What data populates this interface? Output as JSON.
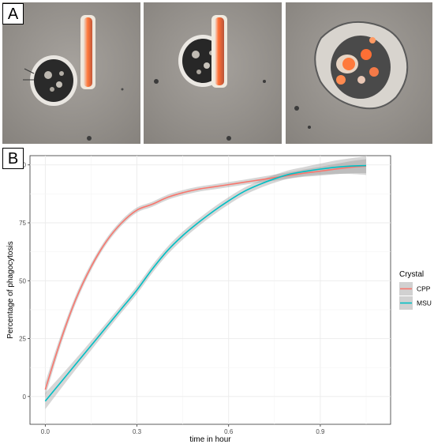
{
  "panel_a": {
    "label": "A",
    "images": [
      {
        "stage": "crystal-adjacent-to-cell"
      },
      {
        "stage": "cell-engulfing-crystal"
      },
      {
        "stage": "crystal-fully-phagocytosed"
      }
    ]
  },
  "panel_b": {
    "label": "B"
  },
  "chart_data": {
    "type": "line",
    "title": "",
    "xlabel": "time in hour",
    "ylabel": "Percentage of phagocytosis",
    "xlim": [
      -0.05,
      1.13
    ],
    "ylim": [
      -12,
      104
    ],
    "x_ticks": [
      0.0,
      0.3,
      0.6,
      0.9
    ],
    "x_tick_labels": [
      "0.0",
      "0.3",
      "0.6",
      "0.9"
    ],
    "y_ticks": [
      0,
      25,
      50,
      75,
      100
    ],
    "y_tick_labels": [
      "0",
      "25",
      "50",
      "75",
      "100"
    ],
    "grid": true,
    "legend": {
      "title": "Crystal",
      "position": "right"
    },
    "series": [
      {
        "name": "CPP",
        "color": "#F8766D",
        "x": [
          0.0,
          0.05,
          0.1,
          0.15,
          0.2,
          0.25,
          0.3,
          0.35,
          0.4,
          0.45,
          0.5,
          0.55,
          0.6,
          0.65,
          0.7,
          0.75,
          0.8,
          0.85,
          0.9,
          0.95,
          1.0,
          1.05
        ],
        "y": [
          3,
          24,
          42,
          56,
          67,
          75,
          80.5,
          83,
          86,
          88,
          89.5,
          90.5,
          91.5,
          92.5,
          93.5,
          94.5,
          95.5,
          96.5,
          97.3,
          98.2,
          99,
          99.5
        ],
        "ci_halfwidth": [
          3,
          2.2,
          1.8,
          1.5,
          1.3,
          1.2,
          1.1,
          1.1,
          1.1,
          1.1,
          1.1,
          1.1,
          1.1,
          1.1,
          1.2,
          1.3,
          1.4,
          1.6,
          1.9,
          2.2,
          2.6,
          3
        ]
      },
      {
        "name": "MSU",
        "color": "#00BFC4",
        "x": [
          0.0,
          0.05,
          0.1,
          0.15,
          0.2,
          0.25,
          0.3,
          0.35,
          0.4,
          0.45,
          0.5,
          0.55,
          0.6,
          0.65,
          0.7,
          0.75,
          0.8,
          0.85,
          0.9,
          0.95,
          1.0,
          1.05
        ],
        "y": [
          -2,
          6,
          14,
          22,
          30,
          38,
          46,
          55,
          63,
          69.5,
          75,
          80,
          84.5,
          88.5,
          91.5,
          94,
          96,
          97.2,
          98.2,
          99,
          99.5,
          99.7
        ],
        "ci_halfwidth": [
          3.5,
          2.8,
          2.3,
          2,
          1.8,
          1.7,
          1.7,
          1.7,
          1.7,
          1.7,
          1.6,
          1.6,
          1.6,
          1.6,
          1.6,
          1.7,
          1.8,
          2,
          2.4,
          2.9,
          3.4,
          4
        ]
      }
    ]
  }
}
